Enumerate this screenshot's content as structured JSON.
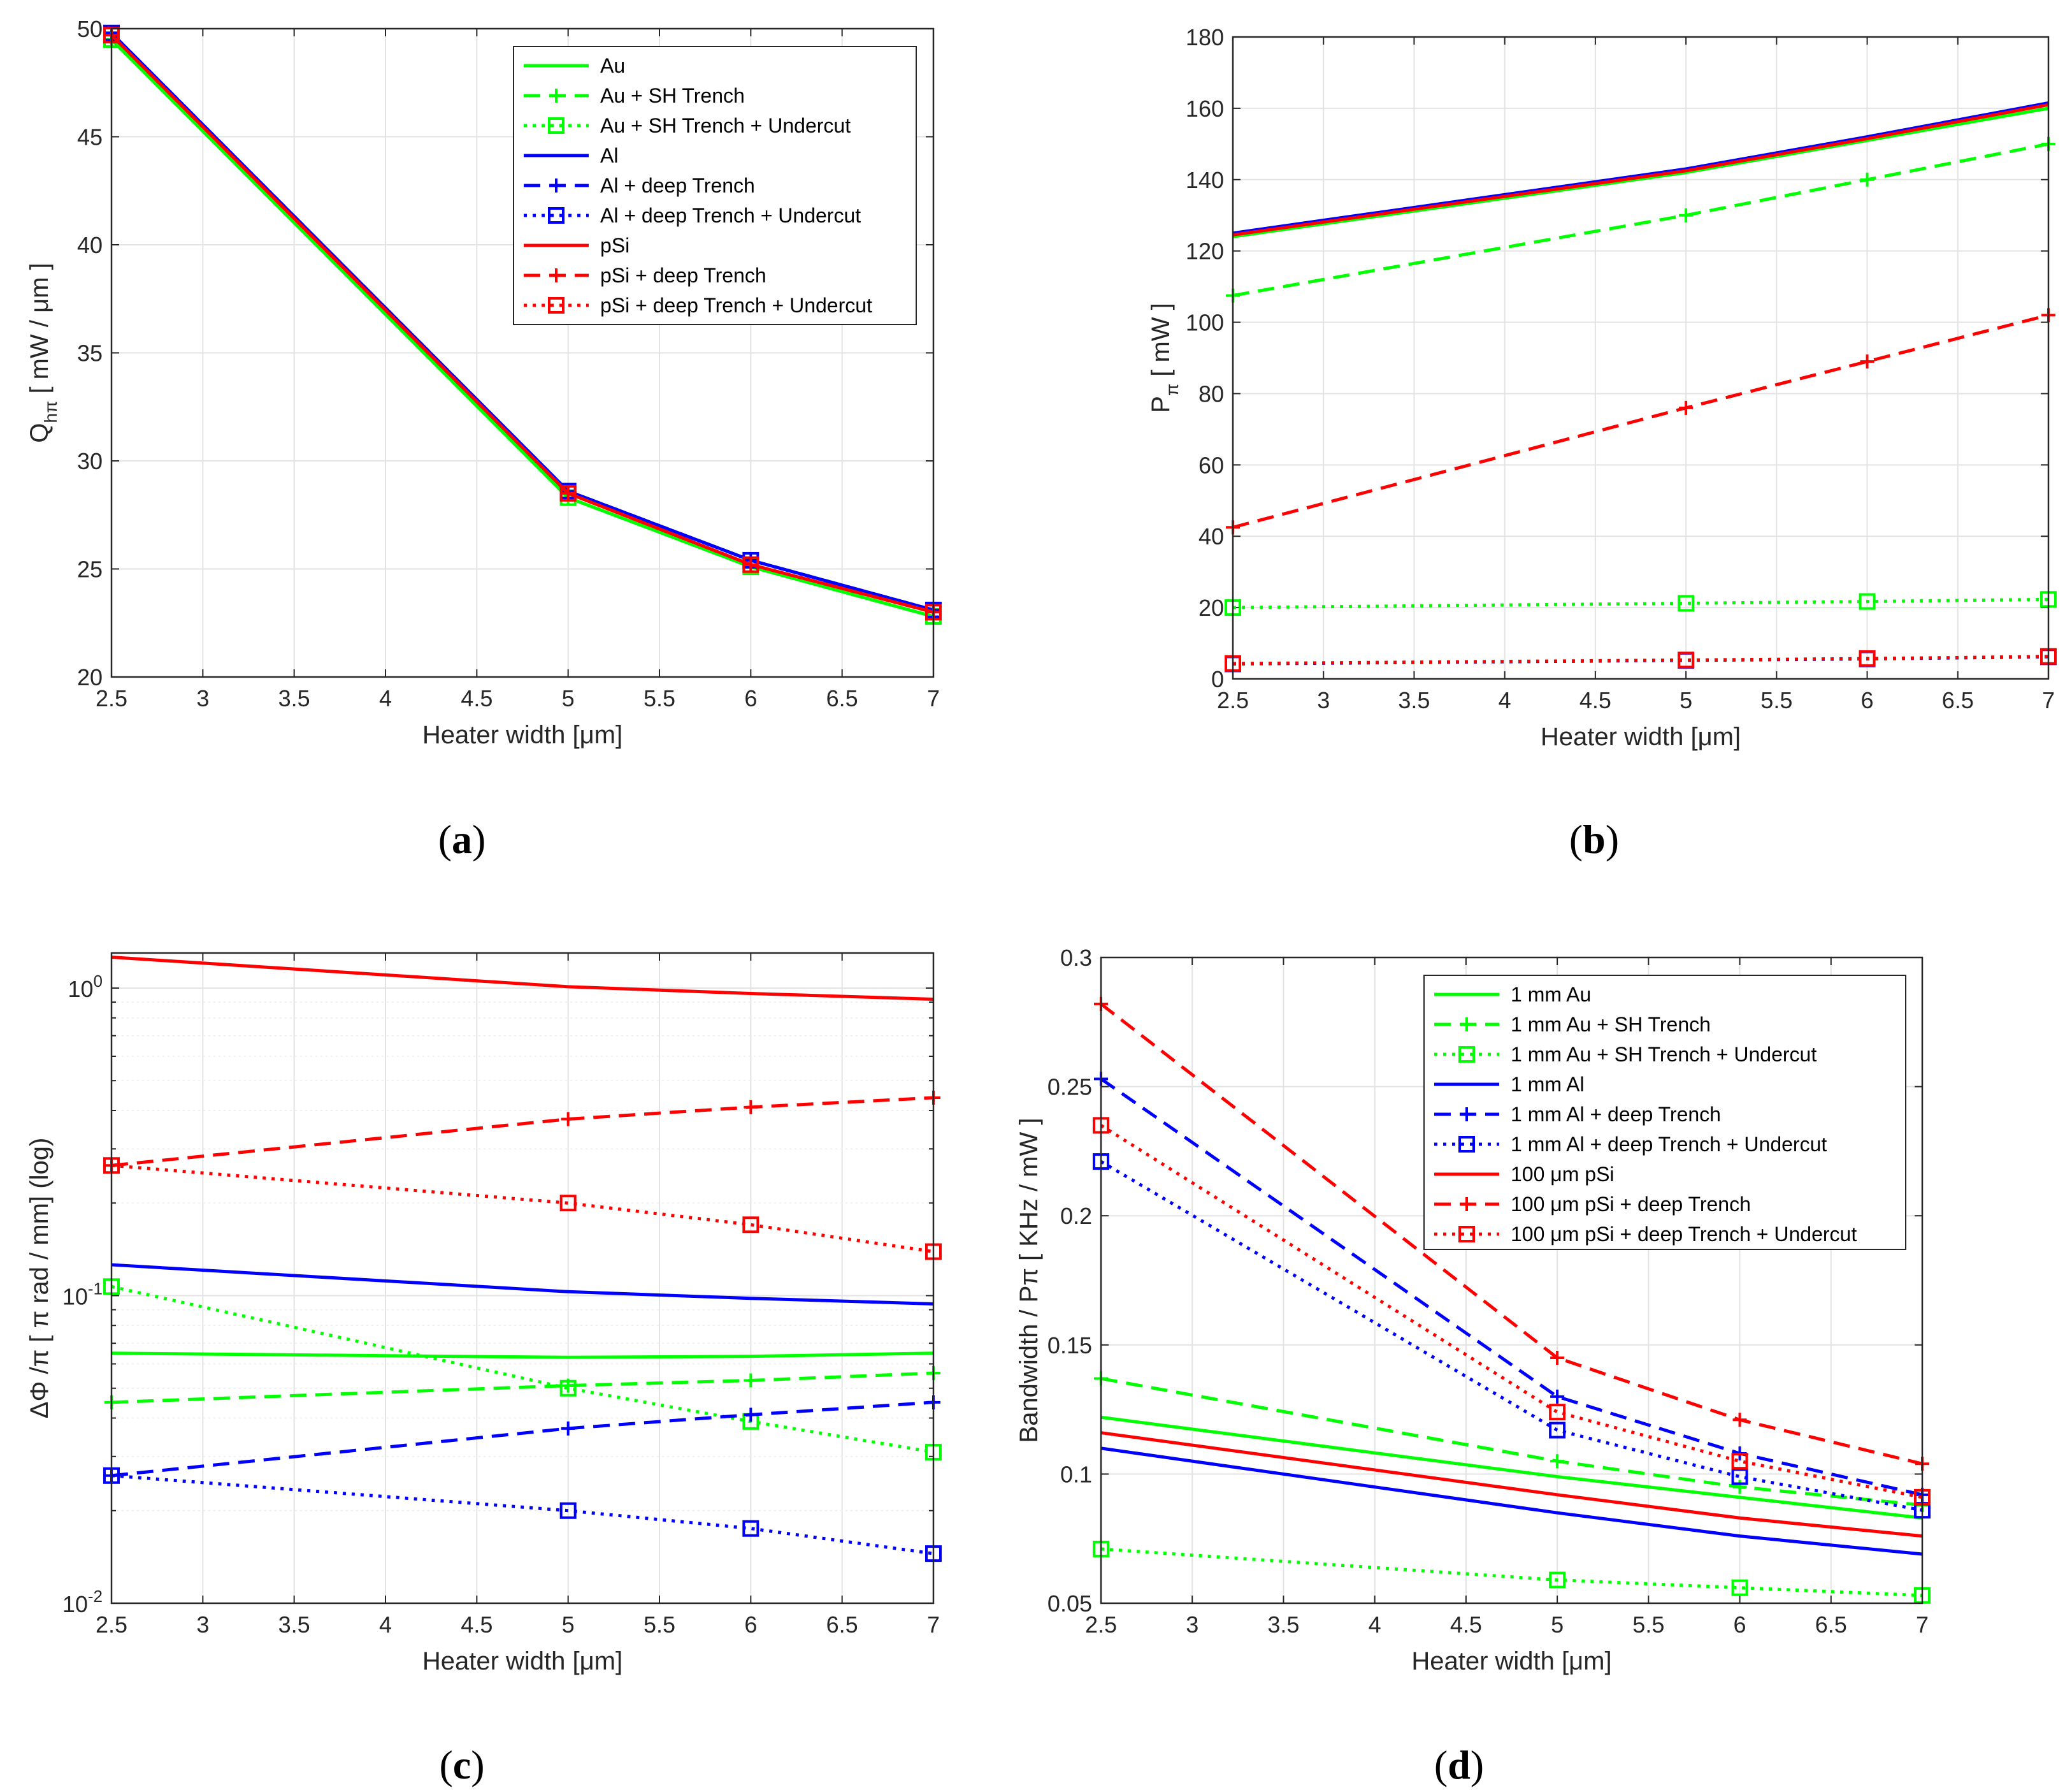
{
  "chart_data": [
    {
      "id": "a",
      "caption": "a",
      "type": "line",
      "xlabel": "Heater width [μm]",
      "ylabel_main": "Q",
      "ylabel_sub": "hπ",
      "ylabel_rest": " [ mW / μm ]",
      "xlim": [
        2.5,
        7
      ],
      "ylim": [
        20,
        50
      ],
      "xticks": [
        "2.5",
        "3",
        "3.5",
        "4",
        "4.5",
        "5",
        "5.5",
        "6",
        "6.5",
        "7"
      ],
      "yticks": [
        "20",
        "25",
        "30",
        "35",
        "40",
        "45",
        "50"
      ],
      "x": [
        2.5,
        5,
        6,
        7
      ],
      "legend_position": "top-right",
      "series": [
        {
          "name": "Au",
          "color": "#00ff00",
          "style": "solid",
          "marker": "none",
          "values": [
            49.5,
            28.3,
            25.1,
            22.8
          ]
        },
        {
          "name": "Au + SH Trench",
          "color": "#00ff00",
          "style": "dashed",
          "marker": "plus",
          "values": [
            49.5,
            28.3,
            25.1,
            22.8
          ]
        },
        {
          "name": "Au + SH Trench + Undercut",
          "color": "#00ff00",
          "style": "dotted",
          "marker": "square",
          "values": [
            49.5,
            28.3,
            25.1,
            22.8
          ]
        },
        {
          "name": "Al",
          "color": "#0000ff",
          "style": "solid",
          "marker": "none",
          "values": [
            49.8,
            28.6,
            25.4,
            23.1
          ]
        },
        {
          "name": "Al + deep Trench",
          "color": "#0000ff",
          "style": "dashed",
          "marker": "plus",
          "values": [
            49.8,
            28.6,
            25.4,
            23.1
          ]
        },
        {
          "name": "Al + deep Trench + Undercut",
          "color": "#0000ff",
          "style": "dotted",
          "marker": "square",
          "values": [
            49.8,
            28.6,
            25.4,
            23.1
          ]
        },
        {
          "name": "pSi",
          "color": "#ff0000",
          "style": "solid",
          "marker": "none",
          "values": [
            49.7,
            28.5,
            25.2,
            23.0
          ]
        },
        {
          "name": "pSi + deep Trench",
          "color": "#ff0000",
          "style": "dashed",
          "marker": "plus",
          "values": [
            49.7,
            28.5,
            25.2,
            23.0
          ]
        },
        {
          "name": "pSi + deep Trench + Undercut",
          "color": "#ff0000",
          "style": "dotted",
          "marker": "square",
          "values": [
            49.7,
            28.5,
            25.2,
            23.0
          ]
        }
      ]
    },
    {
      "id": "b",
      "caption": "b",
      "type": "line",
      "xlabel": "Heater width [μm]",
      "ylabel_main": "P",
      "ylabel_sub": "π",
      "ylabel_rest": " [ mW ]",
      "xlim": [
        2.5,
        7
      ],
      "ylim": [
        0,
        180
      ],
      "xticks": [
        "2.5",
        "3",
        "3.5",
        "4",
        "4.5",
        "5",
        "5.5",
        "6",
        "6.5",
        "7"
      ],
      "yticks": [
        "0",
        "20",
        "40",
        "60",
        "80",
        "100",
        "120",
        "140",
        "160",
        "180"
      ],
      "x": [
        2.5,
        5,
        6,
        7
      ],
      "series": [
        {
          "name": "Au",
          "color": "#00ff00",
          "style": "solid",
          "marker": "none",
          "values": [
            124,
            142,
            151,
            160
          ]
        },
        {
          "name": "Au + SH Trench",
          "color": "#00ff00",
          "style": "dashed",
          "marker": "plus",
          "values": [
            107.5,
            130,
            140,
            150
          ]
        },
        {
          "name": "Au + SH Trench + Undercut",
          "color": "#00ff00",
          "style": "dotted",
          "marker": "square",
          "values": [
            20,
            21.2,
            21.7,
            22.3
          ]
        },
        {
          "name": "Al",
          "color": "#0000ff",
          "style": "solid",
          "marker": "none",
          "values": [
            125,
            143,
            152,
            161.5
          ]
        },
        {
          "name": "Al + deep Trench + Undercut",
          "color": "#0000ff",
          "style": "dotted",
          "marker": "square",
          "values": [
            4.2,
            5.2,
            5.6,
            6.2
          ]
        },
        {
          "name": "pSi",
          "color": "#ff0000",
          "style": "solid",
          "marker": "none",
          "values": [
            124.5,
            142.5,
            151.5,
            161
          ]
        },
        {
          "name": "pSi + deep Trench",
          "color": "#ff0000",
          "style": "dashed",
          "marker": "plus",
          "values": [
            42.5,
            76,
            89,
            102
          ]
        },
        {
          "name": "pSi + deep Trench + Undercut",
          "color": "#ff0000",
          "style": "dotted",
          "marker": "square",
          "values": [
            4.3,
            5.3,
            5.7,
            6.3
          ]
        }
      ]
    },
    {
      "id": "c",
      "caption": "c",
      "type": "line",
      "yscale": "log",
      "xlabel": "Heater width [μm]",
      "ylabel": "ΔΦ /π [ π rad / mm] (log)",
      "xlim": [
        2.5,
        7
      ],
      "ylim": [
        0.01,
        1.3
      ],
      "xticks": [
        "2.5",
        "3",
        "3.5",
        "4",
        "4.5",
        "5",
        "5.5",
        "6",
        "6.5",
        "7"
      ],
      "ytick_labels": [
        {
          "base": "10",
          "exp": "-2",
          "value": 0.01
        },
        {
          "base": "10",
          "exp": "-1",
          "value": 0.1
        },
        {
          "base": "10",
          "exp": "0",
          "value": 1
        }
      ],
      "x": [
        2.5,
        5,
        6,
        7
      ],
      "series": [
        {
          "name": "Au",
          "color": "#00ff00",
          "style": "solid",
          "marker": "none",
          "values": [
            0.065,
            0.063,
            0.0635,
            0.065
          ]
        },
        {
          "name": "Au + SH Trench",
          "color": "#00ff00",
          "style": "dashed",
          "marker": "plus",
          "values": [
            0.045,
            0.051,
            0.053,
            0.056
          ]
        },
        {
          "name": "Au + SH Trench + Undercut",
          "color": "#00ff00",
          "style": "dotted",
          "marker": "square",
          "values": [
            0.107,
            0.05,
            0.039,
            0.031
          ]
        },
        {
          "name": "Al",
          "color": "#0000ff",
          "style": "solid",
          "marker": "none",
          "values": [
            0.126,
            0.103,
            0.098,
            0.094
          ]
        },
        {
          "name": "Al + deep Trench",
          "color": "#0000ff",
          "style": "dashed",
          "marker": "plus",
          "values": [
            0.026,
            0.037,
            0.041,
            0.045
          ]
        },
        {
          "name": "Al + deep Trench + Undercut",
          "color": "#0000ff",
          "style": "dotted",
          "marker": "square",
          "values": [
            0.026,
            0.02,
            0.0175,
            0.0145
          ]
        },
        {
          "name": "pSi",
          "color": "#ff0000",
          "style": "solid",
          "marker": "none",
          "values": [
            1.26,
            1.01,
            0.96,
            0.92
          ]
        },
        {
          "name": "pSi + deep Trench",
          "color": "#ff0000",
          "style": "dashed",
          "marker": "plus",
          "values": [
            0.265,
            0.375,
            0.41,
            0.44
          ]
        },
        {
          "name": "pSi + deep Trench + Undercut",
          "color": "#ff0000",
          "style": "dotted",
          "marker": "square",
          "values": [
            0.265,
            0.2,
            0.17,
            0.139
          ]
        }
      ]
    },
    {
      "id": "d",
      "caption": "d",
      "type": "line",
      "xlabel": "Heater width [μm]",
      "ylabel": "Bandwidth / Pπ [ KHz / mW ]",
      "xlim": [
        2.5,
        7
      ],
      "ylim": [
        0.05,
        0.3
      ],
      "xticks": [
        "2.5",
        "3",
        "3.5",
        "4",
        "4.5",
        "5",
        "5.5",
        "6",
        "6.5",
        "7"
      ],
      "yticks": [
        "0.05",
        "0.1",
        "0.15",
        "0.2",
        "0.25",
        "0.3"
      ],
      "x": [
        2.5,
        5,
        6,
        7
      ],
      "legend_position": "top-right",
      "series": [
        {
          "name": "1 mm Au",
          "color": "#00ff00",
          "style": "solid",
          "marker": "none",
          "values": [
            0.122,
            0.099,
            0.091,
            0.083
          ]
        },
        {
          "name": "1 mm Au + SH Trench",
          "color": "#00ff00",
          "style": "dashed",
          "marker": "plus",
          "values": [
            0.137,
            0.105,
            0.095,
            0.088
          ]
        },
        {
          "name": "1 mm Au + SH Trench + Undercut",
          "color": "#00ff00",
          "style": "dotted",
          "marker": "square",
          "values": [
            0.071,
            0.059,
            0.056,
            0.053
          ]
        },
        {
          "name": "1 mm Al",
          "color": "#0000ff",
          "style": "solid",
          "marker": "none",
          "values": [
            0.11,
            0.085,
            0.076,
            0.069
          ]
        },
        {
          "name": "1 mm Al + deep Trench",
          "color": "#0000ff",
          "style": "dashed",
          "marker": "plus",
          "values": [
            0.253,
            0.13,
            0.108,
            0.092
          ]
        },
        {
          "name": "1 mm Al + deep Trench + Undercut",
          "color": "#0000ff",
          "style": "dotted",
          "marker": "square",
          "values": [
            0.221,
            0.117,
            0.099,
            0.086
          ]
        },
        {
          "name": "100 μm pSi",
          "color": "#ff0000",
          "style": "solid",
          "marker": "none",
          "values": [
            0.116,
            0.092,
            0.083,
            0.076
          ]
        },
        {
          "name": "100 μm pSi + deep Trench",
          "color": "#ff0000",
          "style": "dashed",
          "marker": "plus",
          "values": [
            0.282,
            0.145,
            0.121,
            0.104
          ]
        },
        {
          "name": "100 μm pSi + deep Trench + Undercut",
          "color": "#ff0000",
          "style": "dotted",
          "marker": "square",
          "values": [
            0.235,
            0.124,
            0.105,
            0.091
          ]
        }
      ]
    }
  ]
}
